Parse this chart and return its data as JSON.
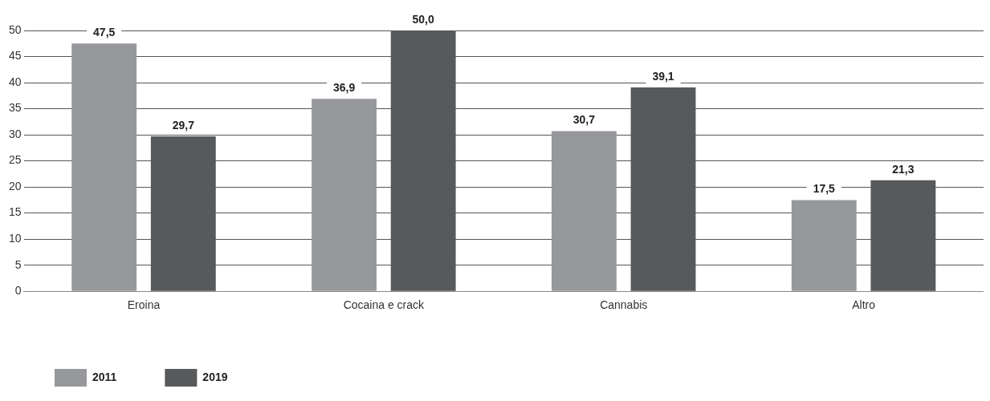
{
  "chart_data": {
    "type": "bar",
    "categories": [
      "Eroina",
      "Cocaina e crack",
      "Cannabis",
      "Altro"
    ],
    "series": [
      {
        "name": "2011",
        "color": "#97989b",
        "values": [
          47.5,
          36.9,
          30.7,
          17.5
        ],
        "value_labels": [
          "47,5",
          "36,9",
          "30,7",
          "17,5"
        ]
      },
      {
        "name": "2019",
        "color": "#58595b",
        "values": [
          29.7,
          50.0,
          39.1,
          21.3
        ],
        "value_labels": [
          "29,7",
          "50,0",
          "39,1",
          "21,3"
        ]
      }
    ],
    "ylim": [
      0,
      50
    ],
    "yticks": [
      0,
      5,
      10,
      15,
      20,
      25,
      30,
      35,
      40,
      45,
      50
    ],
    "grid": "y",
    "legend": "bottom left"
  }
}
